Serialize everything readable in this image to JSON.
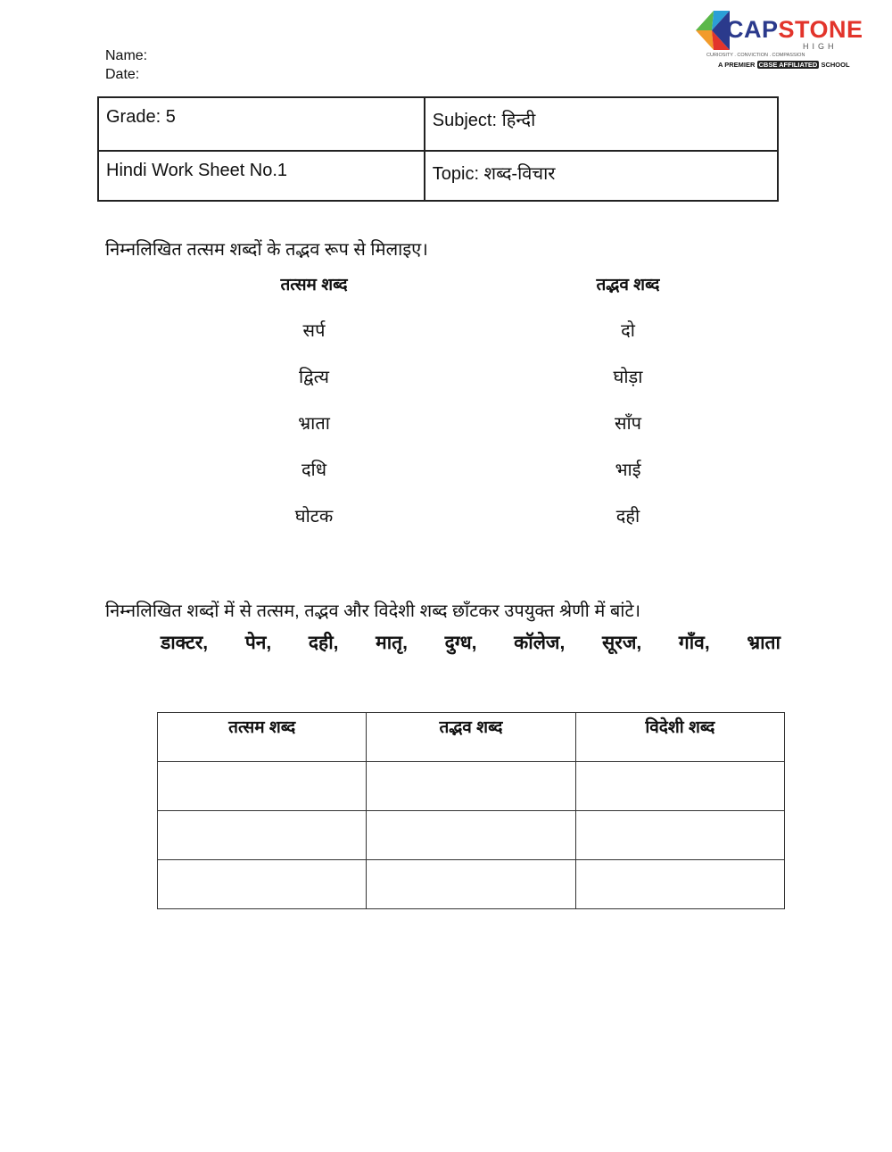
{
  "header": {
    "name_label": "Name:",
    "date_label": "Date:"
  },
  "logo": {
    "name_part1": "CAP",
    "name_part2": "STONE",
    "sub": "HIGH",
    "motto": "CURIOSITY . CONVICTION . COMPASSION",
    "tag_pre": "A PREMIER",
    "tag_cbse": "CBSE AFFILIATED",
    "tag_post": "SCHOOL",
    "colors": {
      "blue": "#2b3a8c",
      "red": "#e2342b"
    }
  },
  "info": {
    "grade": "Grade: 5",
    "subject": "Subject: हिन्दी",
    "worksheet": "Hindi Work Sheet No.1",
    "topic": "Topic: शब्द-विचार"
  },
  "q1": {
    "instruction": "निम्नलिखित तत्सम शब्दों के तद्भव रूप से मिलाइए।",
    "col_left": "तत्सम शब्द",
    "col_right": "तद्भव शब्द",
    "left": [
      "सर्प",
      "द्वित्य",
      "भ्राता",
      "दधि",
      "घोटक"
    ],
    "right": [
      "दो",
      "घोड़ा",
      "साँप",
      "भाई",
      "दही"
    ]
  },
  "q2": {
    "instruction": "निम्नलिखित शब्दों में से तत्सम, तद्भव और विदेशी शब्द छाँटकर उपयुक्त श्रेणी में बांटे।",
    "words": [
      "डाक्टर,",
      "पेन,",
      "दही,",
      "मातृ,",
      "दुग्ध,",
      "कॉलेज,",
      "सूरज,",
      "गाँव,",
      "भ्राता"
    ],
    "table_headers": [
      "तत्सम शब्द",
      "तद्भव शब्द",
      "विदेशी शब्द"
    ]
  }
}
